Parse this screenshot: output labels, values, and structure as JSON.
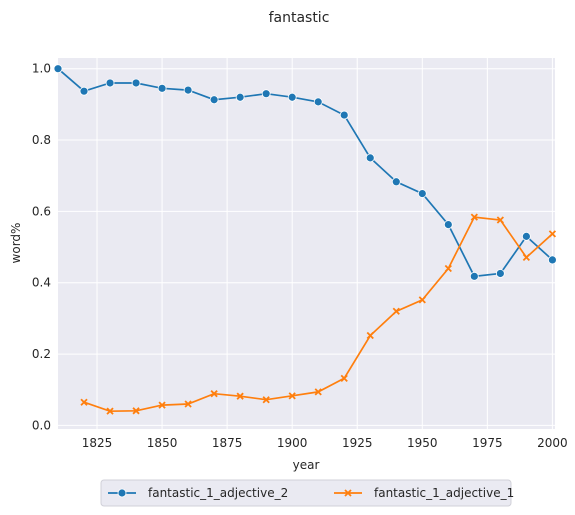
{
  "chart_data": {
    "type": "line",
    "title": "fantastic",
    "xlabel": "year",
    "ylabel": "word%",
    "xlim": [
      1810,
      2001
    ],
    "ylim": [
      -0.01,
      1.03
    ],
    "xticks": [
      1825,
      1850,
      1875,
      1900,
      1925,
      1950,
      1975,
      2000
    ],
    "yticks": [
      0.0,
      0.2,
      0.4,
      0.6,
      0.8,
      1.0
    ],
    "xtick_labels": [
      "1825",
      "1850",
      "1875",
      "1900",
      "1925",
      "1950",
      "1975",
      "2000"
    ],
    "ytick_labels": [
      "0.0",
      "0.2",
      "0.4",
      "0.6",
      "0.8",
      "1.0"
    ],
    "grid": true,
    "legend_position": "bottom-center",
    "series": [
      {
        "name": "fantastic_1_adjective_2",
        "color": "#1f77b4",
        "marker": "circle",
        "x": [
          1810,
          1820,
          1830,
          1840,
          1850,
          1860,
          1870,
          1880,
          1890,
          1900,
          1910,
          1920,
          1930,
          1940,
          1950,
          1960,
          1970,
          1980,
          1990,
          2000
        ],
        "y": [
          1.0,
          0.937,
          0.96,
          0.96,
          0.945,
          0.94,
          0.913,
          0.92,
          0.93,
          0.92,
          0.907,
          0.87,
          0.75,
          0.683,
          0.65,
          0.563,
          0.418,
          0.426,
          0.53,
          0.464
        ]
      },
      {
        "name": "fantastic_1_adjective_1",
        "color": "#ff7f0e",
        "marker": "x",
        "x": [
          1820,
          1830,
          1840,
          1850,
          1860,
          1870,
          1880,
          1890,
          1900,
          1910,
          1920,
          1930,
          1940,
          1950,
          1960,
          1970,
          1980,
          1990,
          2000
        ],
        "y": [
          0.065,
          0.04,
          0.041,
          0.057,
          0.06,
          0.089,
          0.082,
          0.072,
          0.083,
          0.094,
          0.132,
          0.252,
          0.32,
          0.352,
          0.44,
          0.584,
          0.576,
          0.471,
          0.537
        ]
      }
    ]
  }
}
